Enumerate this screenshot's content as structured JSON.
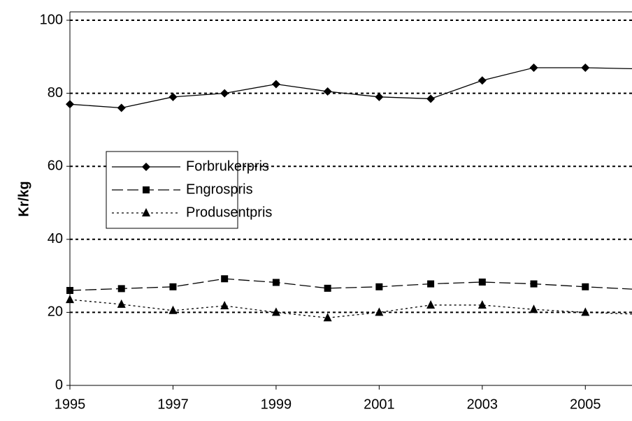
{
  "chart_data": {
    "type": "line",
    "y_label": "Kr/kg",
    "x": [
      1995,
      1996,
      1997,
      1998,
      1999,
      2000,
      2001,
      2002,
      2003,
      2004,
      2005,
      2006
    ],
    "series": [
      {
        "name": "Forbrukerpris",
        "color": "#000000",
        "dash": "none",
        "marker": "diamond",
        "values": [
          77,
          76,
          79,
          80,
          82.5,
          80.5,
          79,
          78.5,
          83.5,
          87,
          87,
          86.7
        ]
      },
      {
        "name": "Engrospris",
        "color": "#000000",
        "dash": "16 6",
        "marker": "square",
        "values": [
          26,
          26.5,
          27,
          29.2,
          28.2,
          26.6,
          27,
          27.8,
          28.3,
          27.8,
          27,
          26.3
        ]
      },
      {
        "name": "Produsentpris",
        "color": "#000000",
        "dash": "3 4",
        "marker": "triangle",
        "values": [
          23.5,
          22.2,
          20.5,
          21.8,
          20,
          18.5,
          20,
          22,
          22,
          20.8,
          20,
          19.5
        ]
      }
    ],
    "xlim": [
      1995,
      2006
    ],
    "xticks": [
      1995,
      1997,
      1999,
      2001,
      2003,
      2005
    ],
    "ylim": [
      0,
      100
    ],
    "yticks": [
      0,
      20,
      40,
      60,
      80,
      100
    ],
    "grid": true
  }
}
